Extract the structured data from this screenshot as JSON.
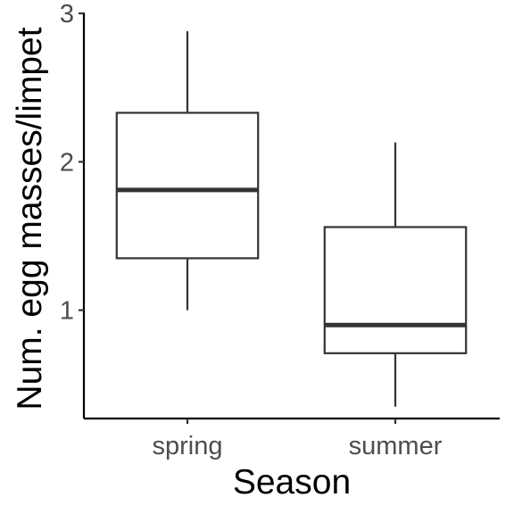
{
  "chart_data": {
    "type": "box",
    "title": "",
    "xlabel": "Season",
    "ylabel": "Num. egg masses/limpet",
    "categories": [
      "spring",
      "summer"
    ],
    "boxes": [
      {
        "category": "spring",
        "whisker_low": 1.0,
        "q1": 1.35,
        "median": 1.81,
        "q3": 2.33,
        "whisker_high": 2.88
      },
      {
        "category": "summer",
        "whisker_low": 0.35,
        "q1": 0.71,
        "median": 0.9,
        "q3": 1.56,
        "whisker_high": 2.13
      }
    ],
    "ylim": [
      0.27,
      3.0
    ],
    "yticks": [
      1,
      2,
      3
    ],
    "grid": false,
    "legend": "none"
  }
}
